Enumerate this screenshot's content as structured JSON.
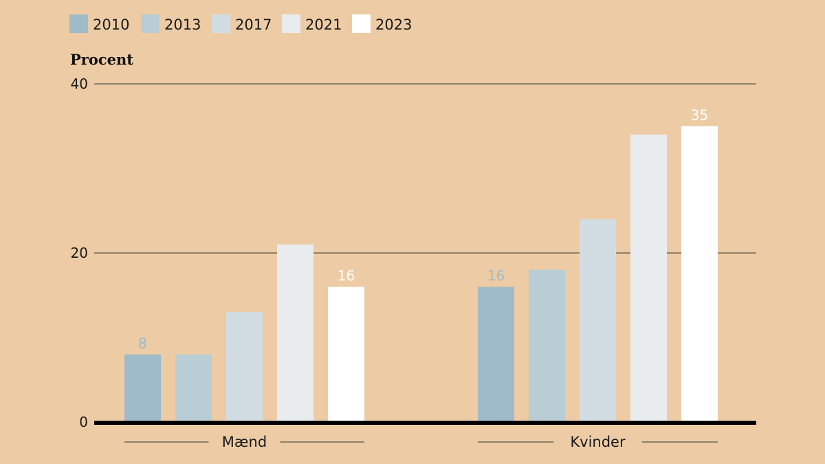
{
  "chart_data": {
    "type": "bar",
    "ylabel": "Procent",
    "ylim": [
      0,
      40
    ],
    "yticks": [
      0,
      20,
      40
    ],
    "categories": [
      "Mænd",
      "Kvinder"
    ],
    "series": [
      {
        "name": "2010",
        "color": "#9fbac8",
        "values": [
          8,
          16
        ]
      },
      {
        "name": "2013",
        "color": "#b8cdd6",
        "values": [
          8,
          18
        ]
      },
      {
        "name": "2017",
        "color": "#d1dde3",
        "values": [
          13,
          24
        ]
      },
      {
        "name": "2021",
        "color": "#e8ecef",
        "values": [
          21,
          34
        ]
      },
      {
        "name": "2023",
        "color": "#ffffff",
        "values": [
          16,
          35
        ]
      }
    ],
    "data_labels": [
      {
        "series": 0,
        "category": 0,
        "text": "8"
      },
      {
        "series": 4,
        "category": 0,
        "text": "16"
      },
      {
        "series": 0,
        "category": 1,
        "text": "16"
      },
      {
        "series": 4,
        "category": 1,
        "text": "35"
      }
    ],
    "grid": true,
    "legend": "top-left",
    "colors": {
      "background": "#edcca5",
      "axis": "#000000",
      "grid": "#333333",
      "label_light": "#9fbac8"
    }
  }
}
